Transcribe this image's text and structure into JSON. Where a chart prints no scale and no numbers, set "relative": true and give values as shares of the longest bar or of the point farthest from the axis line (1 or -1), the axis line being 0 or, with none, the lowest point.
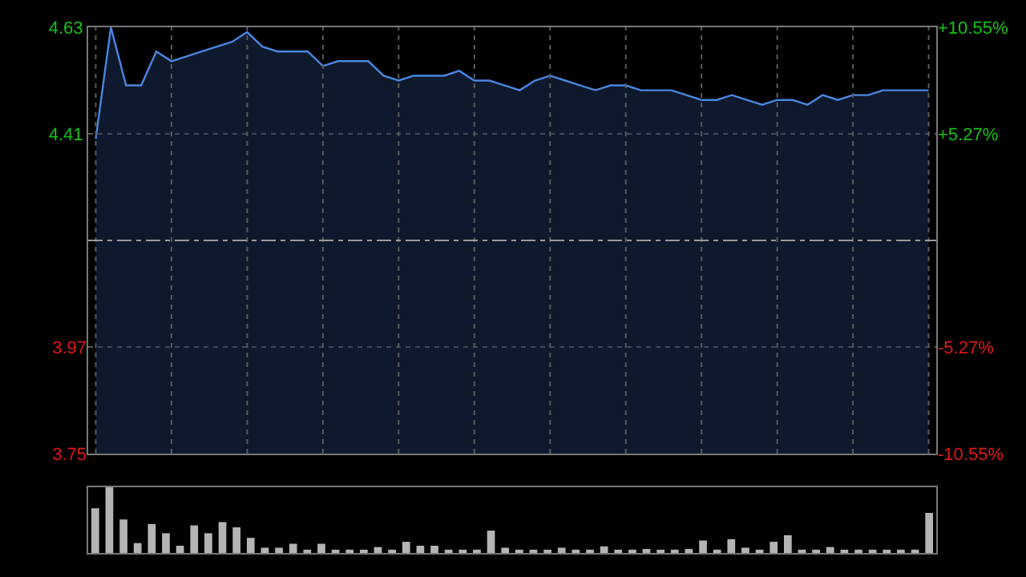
{
  "chart_data": [
    {
      "type": "area",
      "categories": [
        null,
        null,
        null,
        null,
        null,
        null,
        null,
        null,
        null,
        null,
        null,
        null,
        null,
        null,
        null,
        null,
        null,
        null,
        null,
        null,
        null,
        null,
        null,
        null,
        null,
        null,
        null,
        null,
        null,
        null,
        null,
        null,
        null,
        null,
        null,
        null,
        null,
        null,
        null,
        null,
        null,
        null,
        null,
        null,
        null,
        null,
        null,
        null,
        null,
        null,
        null,
        null,
        null,
        null,
        null,
        null
      ],
      "series": [
        {
          "color": "#4a86e0",
          "values": [
            4.4,
            4.63,
            4.51,
            4.51,
            4.58,
            4.56,
            4.57,
            4.58,
            4.59,
            4.6,
            4.62,
            4.59,
            4.58,
            4.58,
            4.58,
            4.55,
            4.56,
            4.56,
            4.56,
            4.53,
            4.52,
            4.53,
            4.53,
            4.53,
            4.54,
            4.52,
            4.52,
            4.51,
            4.5,
            4.52,
            4.53,
            4.52,
            4.51,
            4.5,
            4.51,
            4.51,
            4.5,
            4.5,
            4.5,
            4.49,
            4.48,
            4.48,
            4.49,
            4.48,
            4.47,
            4.48,
            4.48,
            4.47,
            4.49,
            4.48,
            4.49,
            4.49,
            4.5,
            4.5,
            4.5,
            4.5
          ]
        }
      ],
      "ylim": [
        3.75,
        4.63
      ],
      "yticks": [
        3.75,
        3.97,
        4.41,
        4.63
      ],
      "y2lim": [
        -10.55,
        10.55
      ],
      "y2ticks": [
        {
          "value": -10.55,
          "label": "-10.55%"
        },
        {
          "value": -5.27,
          "label": "-5.27%"
        },
        {
          "value": 5.27,
          "label": "+5.27%"
        },
        {
          "value": 10.55,
          "label": "+10.55%"
        }
      ],
      "ref_lines": [
        {
          "axis": "y",
          "value": 4.19,
          "color": "#9a9a9a",
          "line_style": "dashed"
        }
      ],
      "tick_labels": "y",
      "grid": true,
      "legend": false
    },
    {
      "type": "bar",
      "relative": true,
      "categories": [
        null,
        null,
        null,
        null,
        null,
        null,
        null,
        null,
        null,
        null,
        null,
        null,
        null,
        null,
        null,
        null,
        null,
        null,
        null,
        null,
        null,
        null,
        null,
        null,
        null,
        null,
        null,
        null,
        null,
        null,
        null,
        null,
        null,
        null,
        null,
        null,
        null,
        null,
        null,
        null,
        null,
        null,
        null,
        null,
        null,
        null,
        null,
        null,
        null,
        null,
        null,
        null,
        null,
        null,
        null,
        null,
        null,
        null,
        null,
        null
      ],
      "series": [
        {
          "color": "#b4b4b4",
          "values": [
            0.68,
            1,
            0.51,
            0.15,
            0.44,
            0.3,
            0.11,
            0.42,
            0.3,
            0.47,
            0.39,
            0.23,
            0.08,
            0.08,
            0.14,
            0.05,
            0.14,
            0.05,
            0.05,
            0.05,
            0.09,
            0.05,
            0.17,
            0.11,
            0.11,
            0.05,
            0.05,
            0.05,
            0.34,
            0.08,
            0.05,
            0.05,
            0.05,
            0.08,
            0.05,
            0.05,
            0.1,
            0.05,
            0.05,
            0.06,
            0.05,
            0.05,
            0.06,
            0.19,
            0.05,
            0.21,
            0.08,
            0.05,
            0.17,
            0.27,
            0.05,
            0.05,
            0.09,
            0.05,
            0.05,
            0.05,
            0.05,
            0.05,
            0.05,
            0.61
          ]
        }
      ],
      "tick_labels": false,
      "legend": false
    }
  ]
}
